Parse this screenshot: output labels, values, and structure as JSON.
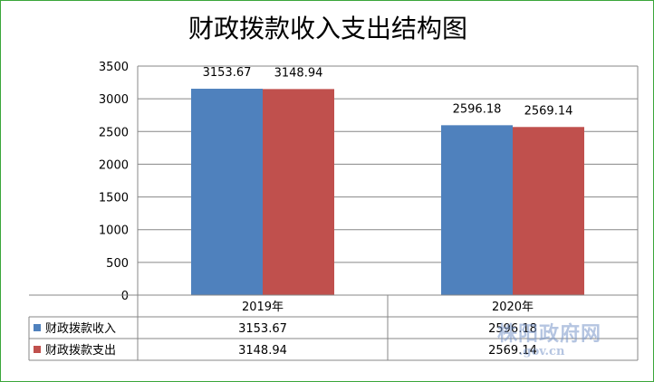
{
  "chart_data": {
    "type": "bar",
    "title": "财政拨款收入支出结构图",
    "categories": [
      "2019年",
      "2020年"
    ],
    "series": [
      {
        "name": "财政拨款收入",
        "values": [
          3153.67,
          2596.18
        ],
        "labels": [
          "3153.67",
          "2596.18"
        ],
        "color": "#4f81bd"
      },
      {
        "name": "财政拨款支出",
        "values": [
          3148.94,
          2569.14
        ],
        "labels": [
          "3148.94",
          "2569.14"
        ],
        "color": "#c0504d"
      }
    ],
    "ylim": [
      0,
      3500
    ],
    "yticks": [
      "0",
      "500",
      "1000",
      "1500",
      "2000",
      "2500",
      "3000",
      "3500"
    ],
    "grid": true,
    "legend": "data-table"
  },
  "watermark": {
    "main": "株阳政府网",
    "sub": ".gov.cn"
  },
  "colors": {
    "border": "#3aa63a",
    "grid": "#878787"
  }
}
